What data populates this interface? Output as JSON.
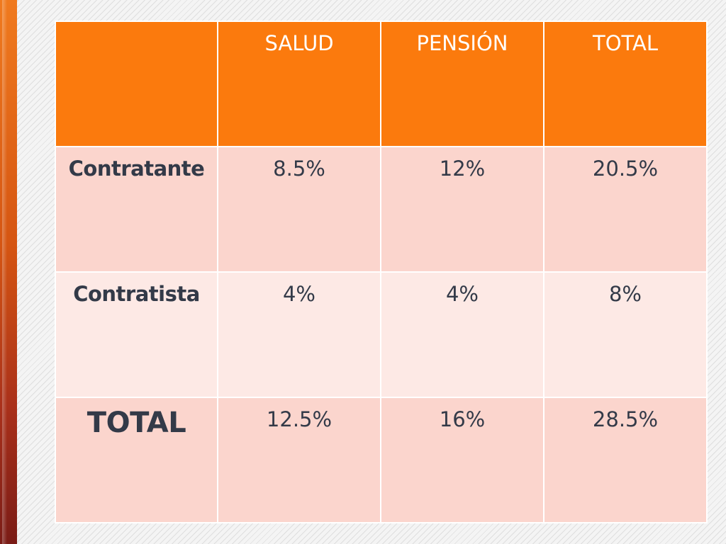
{
  "table": {
    "corner": "",
    "headers": [
      "SALUD",
      "PENSIÓN",
      "TOTAL"
    ],
    "rows": [
      {
        "label": "Contratante",
        "values": [
          "8.5%",
          "12%",
          "20.5%"
        ]
      },
      {
        "label": "Contratista",
        "values": [
          "4%",
          "4%",
          "8%"
        ]
      },
      {
        "label": "TOTAL",
        "values": [
          "12.5%",
          "16%",
          "28.5%"
        ]
      }
    ]
  },
  "colors": {
    "header_bg": "#fb7a0d",
    "row_dark_bg": "#fbd5cd",
    "row_light_bg": "#fde9e5",
    "text": "#333a48",
    "accent_bar": "#d55512"
  }
}
